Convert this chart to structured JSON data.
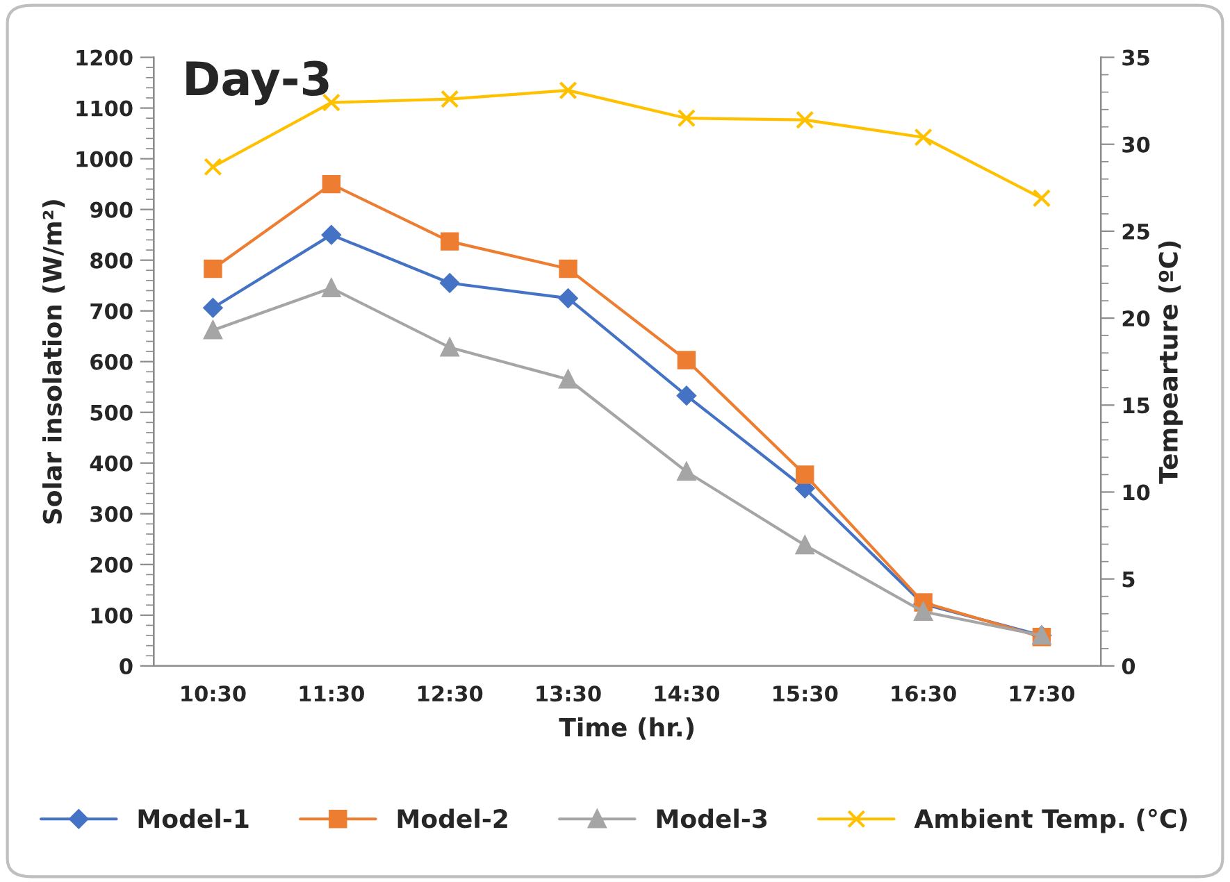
{
  "chart_data": {
    "type": "line",
    "title": "Day-3",
    "xlabel": "Time (hr.)",
    "ylabel": "Solar insolation (W/m²)",
    "y2label": "Tempearture (ºC)",
    "categories": [
      "10:30",
      "11:30",
      "12:30",
      "13:30",
      "14:30",
      "15:30",
      "16:30",
      "17:30"
    ],
    "series": [
      {
        "name": "Model-1",
        "color": "#4472c4",
        "marker": "diamond",
        "values": [
          706,
          850,
          755,
          725,
          533,
          350,
          122,
          60
        ]
      },
      {
        "name": "Model-2",
        "color": "#ed7d31",
        "marker": "square",
        "values": [
          783,
          950,
          837,
          783,
          603,
          377,
          125,
          57
        ]
      },
      {
        "name": "Model-3",
        "color": "#a5a5a5",
        "marker": "triangle",
        "values": [
          662,
          745,
          628,
          565,
          383,
          238,
          107,
          60
        ]
      },
      {
        "name": "Ambient Temp. (°C)",
        "color": "#ffc000",
        "marker": "cross",
        "axis": "y2",
        "values": [
          28.7,
          32.4,
          32.6,
          33.1,
          31.5,
          31.4,
          30.4,
          26.9
        ]
      }
    ],
    "ylim": [
      0,
      1200
    ],
    "yticks": [
      0,
      100,
      200,
      300,
      400,
      500,
      600,
      700,
      800,
      900,
      1000,
      1100,
      1200
    ],
    "y2lim": [
      0,
      35
    ],
    "y2ticks": [
      0,
      5,
      10,
      15,
      20,
      25,
      30,
      35
    ],
    "grid": false,
    "legend": "bottom",
    "line_style": "solid"
  }
}
